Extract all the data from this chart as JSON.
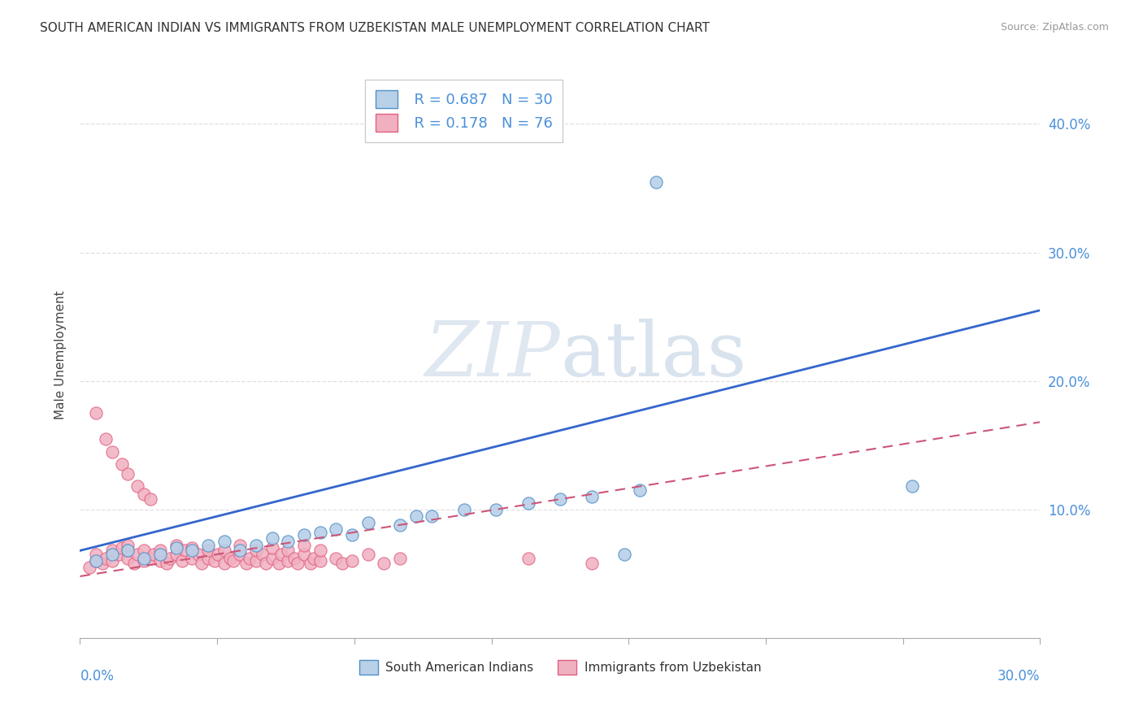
{
  "title": "SOUTH AMERICAN INDIAN VS IMMIGRANTS FROM UZBEKISTAN MALE UNEMPLOYMENT CORRELATION CHART",
  "source": "Source: ZipAtlas.com",
  "ylabel": "Male Unemployment",
  "x_range": [
    0.0,
    0.3
  ],
  "y_range": [
    0.0,
    0.44
  ],
  "legend_r1": "R = 0.687",
  "legend_n1": "N = 30",
  "legend_r2": "R = 0.178",
  "legend_n2": "N = 76",
  "color_blue_fill": "#b8d0e8",
  "color_blue_edge": "#5090c8",
  "color_pink_fill": "#f0b0c0",
  "color_pink_edge": "#e06080",
  "line_blue": "#3366cc",
  "line_pink": "#cc5577",
  "blue_line_x0": 0.0,
  "blue_line_y0": 0.068,
  "blue_line_x1": 0.3,
  "blue_line_y1": 0.255,
  "pink_line_x0": 0.0,
  "pink_line_y0": 0.048,
  "pink_line_x1": 0.3,
  "pink_line_y1": 0.168,
  "scatter_blue": [
    [
      0.005,
      0.06
    ],
    [
      0.01,
      0.065
    ],
    [
      0.015,
      0.068
    ],
    [
      0.02,
      0.062
    ],
    [
      0.025,
      0.065
    ],
    [
      0.03,
      0.07
    ],
    [
      0.035,
      0.068
    ],
    [
      0.04,
      0.072
    ],
    [
      0.045,
      0.075
    ],
    [
      0.05,
      0.068
    ],
    [
      0.055,
      0.072
    ],
    [
      0.06,
      0.078
    ],
    [
      0.065,
      0.075
    ],
    [
      0.07,
      0.08
    ],
    [
      0.075,
      0.082
    ],
    [
      0.08,
      0.085
    ],
    [
      0.085,
      0.08
    ],
    [
      0.09,
      0.09
    ],
    [
      0.1,
      0.088
    ],
    [
      0.105,
      0.095
    ],
    [
      0.11,
      0.095
    ],
    [
      0.12,
      0.1
    ],
    [
      0.13,
      0.1
    ],
    [
      0.14,
      0.105
    ],
    [
      0.15,
      0.108
    ],
    [
      0.16,
      0.11
    ],
    [
      0.175,
      0.115
    ],
    [
      0.18,
      0.355
    ],
    [
      0.26,
      0.118
    ],
    [
      0.17,
      0.065
    ]
  ],
  "scatter_pink": [
    [
      0.003,
      0.055
    ],
    [
      0.005,
      0.06
    ],
    [
      0.005,
      0.065
    ],
    [
      0.007,
      0.058
    ],
    [
      0.008,
      0.062
    ],
    [
      0.01,
      0.06
    ],
    [
      0.01,
      0.068
    ],
    [
      0.012,
      0.065
    ],
    [
      0.013,
      0.07
    ],
    [
      0.015,
      0.062
    ],
    [
      0.015,
      0.068
    ],
    [
      0.015,
      0.072
    ],
    [
      0.017,
      0.058
    ],
    [
      0.018,
      0.065
    ],
    [
      0.02,
      0.06
    ],
    [
      0.02,
      0.068
    ],
    [
      0.022,
      0.062
    ],
    [
      0.023,
      0.065
    ],
    [
      0.025,
      0.06
    ],
    [
      0.025,
      0.068
    ],
    [
      0.027,
      0.058
    ],
    [
      0.028,
      0.062
    ],
    [
      0.03,
      0.065
    ],
    [
      0.03,
      0.072
    ],
    [
      0.032,
      0.06
    ],
    [
      0.033,
      0.068
    ],
    [
      0.035,
      0.062
    ],
    [
      0.035,
      0.07
    ],
    [
      0.037,
      0.065
    ],
    [
      0.038,
      0.058
    ],
    [
      0.04,
      0.062
    ],
    [
      0.04,
      0.068
    ],
    [
      0.042,
      0.06
    ],
    [
      0.043,
      0.065
    ],
    [
      0.045,
      0.058
    ],
    [
      0.045,
      0.068
    ],
    [
      0.047,
      0.062
    ],
    [
      0.048,
      0.06
    ],
    [
      0.05,
      0.065
    ],
    [
      0.05,
      0.072
    ],
    [
      0.052,
      0.058
    ],
    [
      0.053,
      0.062
    ],
    [
      0.055,
      0.06
    ],
    [
      0.055,
      0.068
    ],
    [
      0.057,
      0.065
    ],
    [
      0.058,
      0.058
    ],
    [
      0.06,
      0.062
    ],
    [
      0.06,
      0.07
    ],
    [
      0.062,
      0.058
    ],
    [
      0.063,
      0.065
    ],
    [
      0.065,
      0.06
    ],
    [
      0.065,
      0.068
    ],
    [
      0.067,
      0.062
    ],
    [
      0.068,
      0.058
    ],
    [
      0.07,
      0.065
    ],
    [
      0.07,
      0.072
    ],
    [
      0.072,
      0.058
    ],
    [
      0.073,
      0.062
    ],
    [
      0.075,
      0.06
    ],
    [
      0.075,
      0.068
    ],
    [
      0.005,
      0.175
    ],
    [
      0.008,
      0.155
    ],
    [
      0.01,
      0.145
    ],
    [
      0.013,
      0.135
    ],
    [
      0.015,
      0.128
    ],
    [
      0.018,
      0.118
    ],
    [
      0.02,
      0.112
    ],
    [
      0.022,
      0.108
    ],
    [
      0.08,
      0.062
    ],
    [
      0.082,
      0.058
    ],
    [
      0.085,
      0.06
    ],
    [
      0.09,
      0.065
    ],
    [
      0.095,
      0.058
    ],
    [
      0.1,
      0.062
    ],
    [
      0.14,
      0.062
    ],
    [
      0.16,
      0.058
    ]
  ],
  "watermark_zip_color": "#ccd8ea",
  "watermark_atlas_color": "#c0d0e4",
  "background_color": "#ffffff",
  "grid_color": "#dddddd",
  "ytick_color": "#4a90d9"
}
